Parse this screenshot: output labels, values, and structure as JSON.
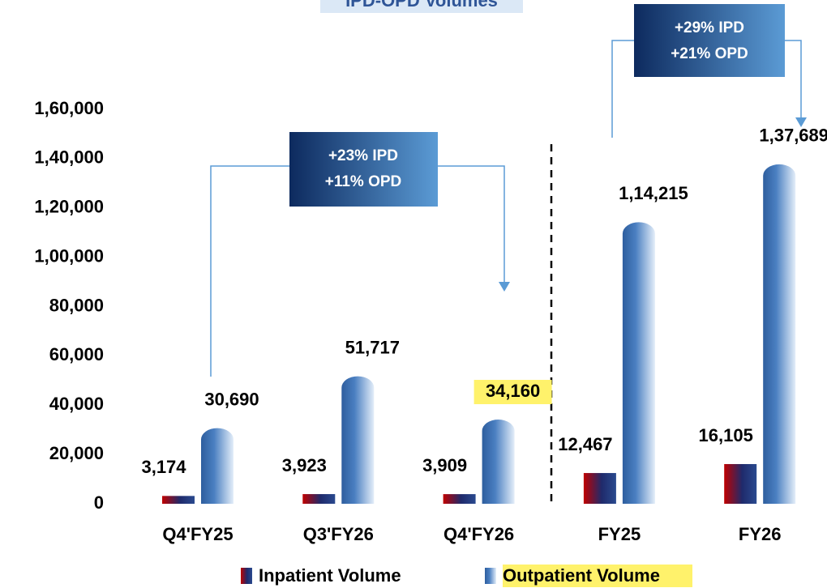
{
  "chart_data": {
    "type": "bar",
    "title": "IPD-OPD Volumes",
    "categories": [
      "Q4'FY25",
      "Q3'FY26",
      "Q4'FY26",
      "FY25",
      "FY26"
    ],
    "series": [
      {
        "name": "Inpatient Volume",
        "color": "#c00000",
        "values": [
          3174,
          3923,
          3909,
          12467,
          16105
        ],
        "value_labels": [
          "3,174",
          "3,923",
          "3,909",
          "12,467",
          "16,105"
        ]
      },
      {
        "name": "Outpatient Volume",
        "color": "#4a7fc1",
        "values": [
          30690,
          51717,
          34160,
          114215,
          137689
        ],
        "value_labels": [
          "30,690",
          "51,717",
          "34,160",
          "1,14,215",
          "1,37,689"
        ]
      }
    ],
    "ylim": [
      0,
      160000
    ],
    "yticks": [
      0,
      {
        "value": 20000,
        "label": "20,000"
      },
      {
        "value": 40000,
        "label": "40,000"
      },
      {
        "value": 60000,
        "label": "60,000"
      },
      {
        "value": 80000,
        "label": "80,000"
      },
      {
        "value": 100000,
        "label": "1,00,000"
      },
      {
        "value": 120000,
        "label": "1,20,000"
      },
      {
        "value": 140000,
        "label": "1,40,000"
      },
      {
        "value": 160000,
        "label": "1,60,000"
      }
    ],
    "grid": false,
    "legend": "bottom",
    "annotations": [
      {
        "lines": [
          "+23% IPD",
          "+11% OPD"
        ]
      },
      {
        "lines": [
          "+29% IPD",
          "+21% OPD"
        ]
      }
    ]
  }
}
